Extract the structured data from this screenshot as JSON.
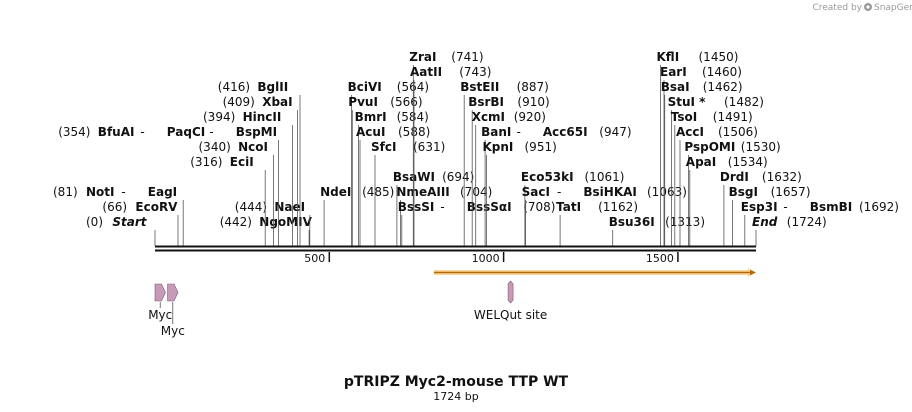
{
  "credit": {
    "text": "Created by",
    "brand": "SnapGene"
  },
  "title": "pTRIPZ Myc2-mouse TTP WT",
  "subtitle": "1724 bp",
  "sequence_length": 1724,
  "ticks": [
    {
      "pos": 500,
      "label": "500"
    },
    {
      "pos": 1000,
      "label": "1000"
    },
    {
      "pos": 1500,
      "label": "1500"
    }
  ],
  "colors": {
    "orf": "#f6b33e",
    "feature": "#c79ab8",
    "backbone": "#111111",
    "line": "#555555"
  },
  "orf": {
    "start": 800,
    "end": 1724
  },
  "features": [
    {
      "label": "Myc",
      "start": 0,
      "end": 30
    },
    {
      "label": "Myc",
      "start": 36,
      "end": 66
    },
    {
      "label": "WELQut site",
      "start": 1014,
      "end": 1026
    }
  ],
  "sites": [
    {
      "row": 0,
      "names": [
        "Start"
      ],
      "pos": 0,
      "pos_label": "(0)",
      "italic": true
    },
    {
      "row": 1,
      "names": [
        "EcoRV"
      ],
      "pos": 66,
      "pos_label": "(66)"
    },
    {
      "row": 2,
      "names": [
        "NotI",
        "EagI"
      ],
      "pos": 81,
      "pos_label": "(81)"
    },
    {
      "row": 0,
      "names": [
        "NgoMIV"
      ],
      "pos": 442,
      "pos_label": "(442)"
    },
    {
      "row": 1,
      "names": [
        "NaeI"
      ],
      "pos": 444,
      "pos_label": "(444)"
    },
    {
      "row": 2,
      "names": [
        "NdeI"
      ],
      "pos": 485,
      "pos_label": "(485)",
      "right": true
    },
    {
      "row": 4,
      "names": [
        "EciI"
      ],
      "pos": 316,
      "pos_label": "(316)"
    },
    {
      "row": 5,
      "names": [
        "NcoI"
      ],
      "pos": 340,
      "pos_label": "(340)"
    },
    {
      "row": 6,
      "names": [
        "BfuAI",
        "PaqCI",
        "BspMI"
      ],
      "pos": 354,
      "pos_label": "(354)"
    },
    {
      "row": 7,
      "names": [
        "HincII"
      ],
      "pos": 394,
      "pos_label": "(394)"
    },
    {
      "row": 8,
      "names": [
        "XbaI"
      ],
      "pos": 409,
      "pos_label": "(409)"
    },
    {
      "row": 9,
      "names": [
        "BglII"
      ],
      "pos": 416,
      "pos_label": "(416)"
    },
    {
      "row": 9,
      "names": [
        "BciVI"
      ],
      "pos": 564,
      "pos_label": "(564)",
      "right": true
    },
    {
      "row": 8,
      "names": [
        "PvuI"
      ],
      "pos": 566,
      "pos_label": "(566)",
      "right": true
    },
    {
      "row": 7,
      "names": [
        "BmrI"
      ],
      "pos": 584,
      "pos_label": "(584)",
      "right": true
    },
    {
      "row": 6,
      "names": [
        "AcuI"
      ],
      "pos": 588,
      "pos_label": "(588)",
      "right": true
    },
    {
      "row": 5,
      "names": [
        "SfcI"
      ],
      "pos": 631,
      "pos_label": "(631)",
      "right": true
    },
    {
      "row": 3,
      "names": [
        "BsaWI"
      ],
      "pos": 694,
      "pos_label": "(694)",
      "right": true
    },
    {
      "row": 2,
      "names": [
        "NmeAIII"
      ],
      "pos": 704,
      "pos_label": "(704)",
      "right": true
    },
    {
      "row": 1,
      "names": [
        "BssSI",
        "BssSαI"
      ],
      "pos": 708,
      "pos_label": "(708)",
      "right": true
    },
    {
      "row": 11,
      "names": [
        "ZraI"
      ],
      "pos": 741,
      "pos_label": "(741)",
      "right": true
    },
    {
      "row": 10,
      "names": [
        "AatII"
      ],
      "pos": 743,
      "pos_label": "(743)",
      "right": true
    },
    {
      "row": 9,
      "names": [
        "BstEII"
      ],
      "pos": 887,
      "pos_label": "(887)",
      "right": true
    },
    {
      "row": 8,
      "names": [
        "BsrBI"
      ],
      "pos": 910,
      "pos_label": "(910)",
      "right": true
    },
    {
      "row": 7,
      "names": [
        "XcmI"
      ],
      "pos": 920,
      "pos_label": "(920)",
      "right": true
    },
    {
      "row": 6,
      "names": [
        "BanI",
        "Acc65I"
      ],
      "pos": 947,
      "pos_label": "(947)",
      "right": true
    },
    {
      "row": 5,
      "names": [
        "KpnI"
      ],
      "pos": 951,
      "pos_label": "(951)",
      "right": true
    },
    {
      "row": 3,
      "names": [
        "Eco53kI"
      ],
      "pos": 1061,
      "pos_label": "(1061)",
      "right": true
    },
    {
      "row": 2,
      "names": [
        "SacI",
        "BsiHKAI"
      ],
      "pos": 1063,
      "pos_label": "(1063)",
      "right": true
    },
    {
      "row": 1,
      "names": [
        "TatI"
      ],
      "pos": 1162,
      "pos_label": "(1162)",
      "right": true
    },
    {
      "row": 0,
      "names": [
        "Bsu36I"
      ],
      "pos": 1313,
      "pos_label": "(1313)",
      "right": true
    },
    {
      "row": 11,
      "names": [
        "KflI"
      ],
      "pos": 1450,
      "pos_label": "(1450)",
      "right": true
    },
    {
      "row": 10,
      "names": [
        "EarI"
      ],
      "pos": 1460,
      "pos_label": "(1460)",
      "right": true
    },
    {
      "row": 9,
      "names": [
        "BsaI"
      ],
      "pos": 1462,
      "pos_label": "(1462)",
      "right": true
    },
    {
      "row": 8,
      "names": [
        "StuI *"
      ],
      "pos": 1482,
      "pos_label": "(1482)",
      "right": true
    },
    {
      "row": 7,
      "names": [
        "TsoI"
      ],
      "pos": 1491,
      "pos_label": "(1491)",
      "right": true
    },
    {
      "row": 6,
      "names": [
        "AccI"
      ],
      "pos": 1506,
      "pos_label": "(1506)",
      "right": true
    },
    {
      "row": 5,
      "names": [
        "PspOMI"
      ],
      "pos": 1530,
      "pos_label": "(1530)",
      "right": true
    },
    {
      "row": 4,
      "names": [
        "ApaI"
      ],
      "pos": 1534,
      "pos_label": "(1534)",
      "right": true
    },
    {
      "row": 3,
      "names": [
        "DrdI"
      ],
      "pos": 1632,
      "pos_label": "(1632)",
      "right": true
    },
    {
      "row": 2,
      "names": [
        "BsgI"
      ],
      "pos": 1657,
      "pos_label": "(1657)",
      "right": true
    },
    {
      "row": 1,
      "names": [
        "Esp3I",
        "BsmBI"
      ],
      "pos": 1692,
      "pos_label": "(1692)",
      "right": true
    },
    {
      "row": 0,
      "names": [
        "End"
      ],
      "pos": 1724,
      "pos_label": "(1724)",
      "right": true,
      "italic": true
    }
  ]
}
